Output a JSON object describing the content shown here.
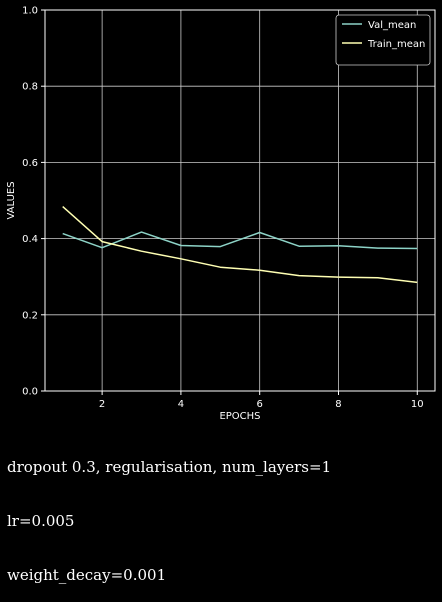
{
  "chart_data": {
    "type": "line",
    "xlabel": "EPOCHS",
    "ylabel": "VALUES",
    "xlim": [
      0.55,
      10.45
    ],
    "ylim": [
      0.0,
      1.0
    ],
    "xticks": [
      2,
      4,
      6,
      8,
      10
    ],
    "yticks": [
      0.0,
      0.2,
      0.4,
      0.6,
      0.8,
      1.0
    ],
    "ytick_labels": [
      "0.0",
      "0.2",
      "0.4",
      "0.6",
      "0.8",
      "1.0"
    ],
    "grid": true,
    "legend_position": "top-right",
    "x": [
      1,
      2,
      3,
      4,
      5,
      6,
      7,
      8,
      9,
      10
    ],
    "series": [
      {
        "name": "Val_mean",
        "color": "#8dd3c7",
        "values": [
          0.413,
          0.376,
          0.417,
          0.382,
          0.379,
          0.416,
          0.38,
          0.381,
          0.375,
          0.374
        ]
      },
      {
        "name": "Train_mean",
        "color": "#ffffb3",
        "values": [
          0.484,
          0.392,
          0.367,
          0.347,
          0.325,
          0.317,
          0.303,
          0.299,
          0.297,
          0.285
        ]
      }
    ]
  },
  "caption": {
    "line1": "dropout 0.3, regularisation, num_layers=1",
    "line2": "lr=0.005",
    "line3": "weight_decay=0.001"
  },
  "colors": {
    "background": "#000000",
    "axes": "#ffffff",
    "grid": "#cccccc"
  }
}
